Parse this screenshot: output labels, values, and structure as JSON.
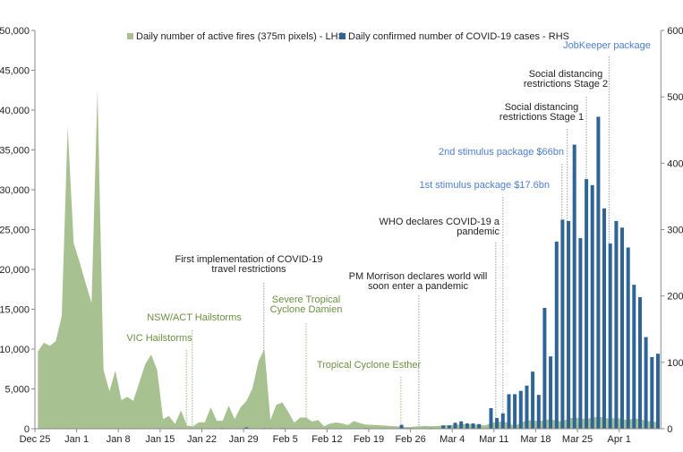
{
  "chart_data": {
    "type": "bar+area",
    "title": "",
    "x_tick_labels": [
      {
        "day": 0,
        "label": "Dec 25"
      },
      {
        "day": 7,
        "label": "Jan 1"
      },
      {
        "day": 14,
        "label": "Jan 8"
      },
      {
        "day": 21,
        "label": "Jan 15"
      },
      {
        "day": 28,
        "label": "Jan 22"
      },
      {
        "day": 35,
        "label": "Jan 29"
      },
      {
        "day": 42,
        "label": "Feb 5"
      },
      {
        "day": 49,
        "label": "Feb 12"
      },
      {
        "day": 56,
        "label": "Feb 19"
      },
      {
        "day": 63,
        "label": "Feb 26"
      },
      {
        "day": 70,
        "label": "Mar 4"
      },
      {
        "day": 77,
        "label": "Mar 11"
      },
      {
        "day": 84,
        "label": "Mar 18"
      },
      {
        "day": 91,
        "label": "Mar 25"
      },
      {
        "day": 98,
        "label": "Apr 1"
      }
    ],
    "y_left": {
      "range": [
        0,
        50000
      ],
      "ticks": [
        "0",
        "5,000",
        "10,000",
        "15,000",
        "20,000",
        "25,000",
        "30,000",
        "35,000",
        "40,000",
        "45,000",
        "50,000"
      ],
      "step": 5000
    },
    "y_right": {
      "range": [
        0,
        600
      ],
      "ticks": [
        "0",
        "100",
        "200",
        "300",
        "400",
        "500",
        "600"
      ],
      "step": 100
    },
    "legend": {
      "placement": "top",
      "fires": "Daily number of active fires (375m pixels) - LHS",
      "covid": "Daily confirmed number of COVID-19 cases - RHS"
    },
    "colors": {
      "fires": "#a8c191",
      "covid": "#2f6497",
      "ann_green": "#6a9040",
      "ann_blue": "#4b7fcf",
      "ann_black": "#222222",
      "line_green": "#9ab97e",
      "line_gray": "#9a9a9a"
    },
    "series": [
      {
        "name": "Daily number of active fires (375m pixels) - LHS",
        "axis": "left",
        "type": "area",
        "values": [
          9700,
          10800,
          10400,
          11000,
          14150,
          37900,
          23300,
          20900,
          18300,
          15800,
          42600,
          7400,
          4700,
          7300,
          3600,
          4000,
          3500,
          5800,
          8100,
          9300,
          7400,
          1200,
          1600,
          600,
          2300,
          400,
          300,
          800,
          800,
          2700,
          1000,
          1000,
          2900,
          1200,
          2700,
          3500,
          5100,
          8500,
          10000,
          1100,
          3000,
          3300,
          2100,
          750,
          1400,
          1400,
          900,
          1100,
          300,
          640,
          790,
          670,
          450,
          970,
          700,
          520,
          490,
          450,
          400,
          350,
          300,
          250,
          200,
          250,
          300,
          350,
          300,
          350,
          400,
          450,
          500,
          550,
          600,
          550,
          500,
          400,
          700,
          850,
          900,
          700,
          300,
          800,
          1000,
          1100,
          900,
          1100,
          1200,
          1000,
          900,
          1300,
          1400,
          1300,
          1200,
          1400,
          1500,
          1400,
          1200,
          1400,
          1200,
          1100,
          1300,
          1200,
          1000,
          900,
          800
        ]
      },
      {
        "name": "Daily confirmed number of COVID-19 cases - RHS",
        "axis": "right",
        "type": "bar",
        "values": [
          0,
          0,
          0,
          0,
          0,
          0,
          0,
          0,
          0,
          0,
          0,
          0,
          0,
          0,
          0,
          0,
          0,
          0,
          0,
          0,
          0,
          0,
          0,
          0,
          0,
          0,
          0,
          0,
          0,
          0,
          0,
          1,
          0,
          0,
          0,
          2,
          0,
          0,
          1,
          1,
          0,
          1,
          0,
          0,
          0,
          0,
          0,
          0,
          0,
          0,
          0,
          0,
          0,
          0,
          0,
          1,
          0,
          0,
          0,
          0,
          0,
          6,
          1,
          0,
          0,
          0,
          1,
          0,
          5,
          5,
          9,
          11,
          8,
          8,
          7,
          0,
          31,
          16,
          23,
          52,
          52,
          57,
          65,
          86,
          51,
          182,
          109,
          282,
          315,
          313,
          428,
          287,
          376,
          367,
          470,
          332,
          279,
          313,
          303,
          273,
          217,
          198,
          138,
          108,
          113
        ]
      }
    ],
    "annotations": [
      {
        "lines": [
          "VIC Hailstorms"
        ],
        "day": 25.4,
        "color": "green"
      },
      {
        "lines": [
          "NSW/ACT Hailstorms"
        ],
        "day": 26.4,
        "color": "green"
      },
      {
        "lines": [
          "First implementation of COVID-19",
          "travel restrictions"
        ],
        "day": 38.4,
        "color": "black"
      },
      {
        "lines": [
          "Severe Tropical",
          "Cyclone Damien"
        ],
        "day": 45.5,
        "color": "green"
      },
      {
        "lines": [
          "Tropical Cyclone Esther"
        ],
        "day": 61.4,
        "color": "green"
      },
      {
        "lines": [
          "PM Morrison declares world will",
          "soon enter a pandemic"
        ],
        "day": 64.4,
        "color": "black"
      },
      {
        "lines": [
          "WHO declares COVID-19 a",
          "pandemic"
        ],
        "day": 77.3,
        "color": "black"
      },
      {
        "lines": [
          "1st stimulus package $17.6bn"
        ],
        "day": 78.5,
        "color": "blue"
      },
      {
        "lines": [
          "2nd stimulus package $66bn"
        ],
        "day": 88.4,
        "color": "blue"
      },
      {
        "lines": [
          "Social distancing",
          "restrictions Stage 1"
        ],
        "day": 89.3,
        "color": "black"
      },
      {
        "lines": [
          "Social distancing",
          "restrictions Stage 2"
        ],
        "day": 92.5,
        "color": "black"
      },
      {
        "lines": [
          "JobKeeper package"
        ],
        "day": 96.3,
        "color": "blue"
      }
    ]
  }
}
